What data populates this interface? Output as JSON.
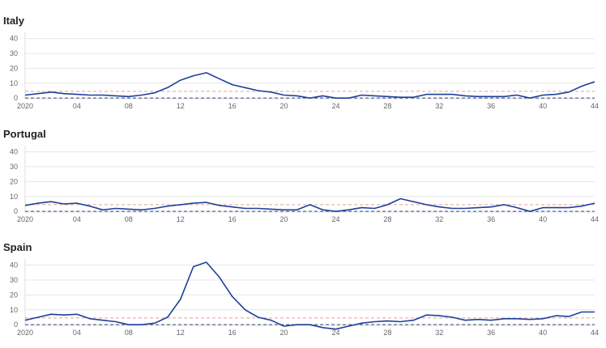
{
  "chart_data": [
    {
      "type": "line",
      "title": "Italy",
      "x_tick_labels": [
        "2020",
        "04",
        "08",
        "12",
        "16",
        "20",
        "24",
        "28",
        "32",
        "36",
        "40",
        "44"
      ],
      "x_tick_weeks": [
        0,
        4,
        8,
        12,
        16,
        20,
        24,
        28,
        32,
        36,
        40,
        44
      ],
      "y_ticks": [
        0,
        10,
        20,
        30,
        40
      ],
      "ylim": [
        -1,
        42
      ],
      "xlim": [
        0,
        44
      ],
      "grid": true,
      "reference_lines": [
        {
          "y": 4.5,
          "color": "#e8a090",
          "style": "dashed"
        },
        {
          "y": 0,
          "color": "#3a4a6b",
          "style": "dashed"
        }
      ],
      "series": [
        {
          "color": "#1f3f9a",
          "x": [
            0,
            1,
            2,
            3,
            4,
            5,
            6,
            7,
            8,
            9,
            10,
            11,
            12,
            13,
            14,
            15,
            16,
            17,
            18,
            19,
            20,
            21,
            22,
            23,
            24,
            25,
            26,
            27,
            28,
            29,
            30,
            31,
            32,
            33,
            34,
            35,
            36,
            37,
            38,
            39,
            40,
            41,
            42,
            43,
            44
          ],
          "y": [
            2,
            3,
            4,
            3,
            2.5,
            2,
            2,
            1.5,
            1,
            2,
            3.5,
            7,
            12,
            15,
            17,
            13,
            9,
            7,
            5,
            4,
            2,
            1.5,
            0,
            1.5,
            0,
            0,
            2,
            1.5,
            1,
            0.5,
            0.5,
            2.5,
            2.5,
            2.5,
            1.5,
            1,
            1,
            1,
            2,
            0,
            2,
            2.5,
            4,
            8,
            11
          ]
        }
      ]
    },
    {
      "type": "line",
      "title": "Portugal",
      "x_tick_labels": [
        "2020",
        "04",
        "08",
        "12",
        "16",
        "20",
        "24",
        "28",
        "32",
        "36",
        "40",
        "44"
      ],
      "x_tick_weeks": [
        0,
        4,
        8,
        12,
        16,
        20,
        24,
        28,
        32,
        36,
        40,
        44
      ],
      "y_ticks": [
        0,
        10,
        20,
        30,
        40
      ],
      "ylim": [
        -1,
        42
      ],
      "xlim": [
        0,
        44
      ],
      "grid": true,
      "reference_lines": [
        {
          "y": 4.5,
          "color": "#e8a090",
          "style": "dashed"
        },
        {
          "y": 0,
          "color": "#3a4a6b",
          "style": "dashed"
        }
      ],
      "series": [
        {
          "color": "#1f3f9a",
          "x": [
            0,
            1,
            2,
            3,
            4,
            5,
            6,
            7,
            8,
            9,
            10,
            11,
            12,
            13,
            14,
            15,
            16,
            17,
            18,
            19,
            20,
            21,
            22,
            23,
            24,
            25,
            26,
            27,
            28,
            29,
            30,
            31,
            32,
            33,
            34,
            35,
            36,
            37,
            38,
            39,
            40,
            41,
            42,
            43,
            44
          ],
          "y": [
            4,
            5.5,
            6.5,
            5,
            5.5,
            3.5,
            1,
            2,
            1.5,
            1,
            2,
            3.5,
            4.5,
            5.5,
            6,
            4,
            3,
            2,
            2,
            1.5,
            1,
            1,
            4.5,
            1,
            0,
            1,
            2.5,
            2,
            4.5,
            8.5,
            6.5,
            4.5,
            3,
            2,
            2,
            2.5,
            3,
            4.5,
            2.5,
            0,
            2.5,
            2.5,
            2.5,
            3.5,
            5.5
          ]
        }
      ]
    },
    {
      "type": "line",
      "title": "Spain",
      "x_tick_labels": [
        "2020",
        "04",
        "08",
        "12",
        "16",
        "20",
        "24",
        "28",
        "32",
        "36",
        "40",
        "44"
      ],
      "x_tick_weeks": [
        0,
        4,
        8,
        12,
        16,
        20,
        24,
        28,
        32,
        36,
        40,
        44
      ],
      "y_ticks": [
        0,
        10,
        20,
        30,
        40
      ],
      "ylim": [
        -1,
        42
      ],
      "xlim": [
        0,
        44
      ],
      "grid": true,
      "reference_lines": [
        {
          "y": 4.5,
          "color": "#e8a090",
          "style": "dashed"
        },
        {
          "y": 0,
          "color": "#3a4a6b",
          "style": "dashed"
        }
      ],
      "series": [
        {
          "color": "#1f3f9a",
          "x": [
            0,
            1,
            2,
            3,
            4,
            5,
            6,
            7,
            8,
            9,
            10,
            11,
            12,
            13,
            14,
            15,
            16,
            17,
            18,
            19,
            20,
            21,
            22,
            23,
            24,
            25,
            26,
            27,
            28,
            29,
            30,
            31,
            32,
            33,
            34,
            35,
            36,
            37,
            38,
            39,
            40,
            41,
            42,
            43,
            44
          ],
          "y": [
            3,
            5,
            7,
            6.5,
            7,
            4,
            3,
            2,
            0,
            0,
            1,
            5,
            17,
            39,
            42,
            32,
            19,
            10,
            5,
            3,
            -1,
            0,
            0,
            -2,
            -3,
            -1,
            1,
            2,
            2.5,
            2,
            3,
            6.5,
            6,
            5,
            3,
            3.5,
            3,
            4,
            4,
            3.5,
            4,
            6,
            5.5,
            8.5,
            8.5
          ]
        }
      ]
    }
  ]
}
